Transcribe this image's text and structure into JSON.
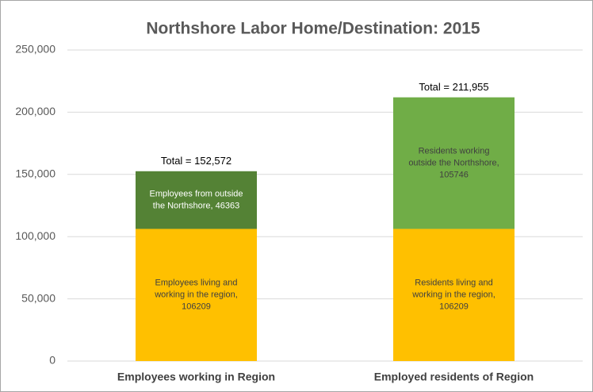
{
  "chart_data": {
    "type": "stacked_bar",
    "title": "Northshore Labor Home/Destination: 2015",
    "categories": [
      "Employees working in Region",
      "Employed residents of Region"
    ],
    "series": [
      {
        "color": "#ffc000",
        "values": [
          106209,
          106209
        ],
        "value_labels": [
          "Employees living and working in the region, 106209",
          "Residents living and working in the region, 106209"
        ],
        "label_color": "#404040"
      },
      {
        "colors": [
          "#548235",
          "#70ad47"
        ],
        "values": [
          46363,
          105746
        ],
        "value_labels": [
          "Employees from outside the Northshore, 46363",
          "Residents working outside the Northshore, 105746"
        ],
        "label_colors": [
          "#ffffff",
          "#404040"
        ]
      }
    ],
    "total_labels": [
      "Total = 152,572",
      "Total = 211,955"
    ],
    "ylim": [
      0,
      250000
    ],
    "yticks": [
      0,
      {
        "value": 50000,
        "label": "50,000"
      },
      {
        "value": 100000,
        "label": "100,000"
      },
      {
        "value": 150000,
        "label": "150,000"
      },
      {
        "value": 200000,
        "label": "200,000"
      },
      {
        "value": 250000,
        "label": "250,000"
      }
    ],
    "grid": true
  }
}
